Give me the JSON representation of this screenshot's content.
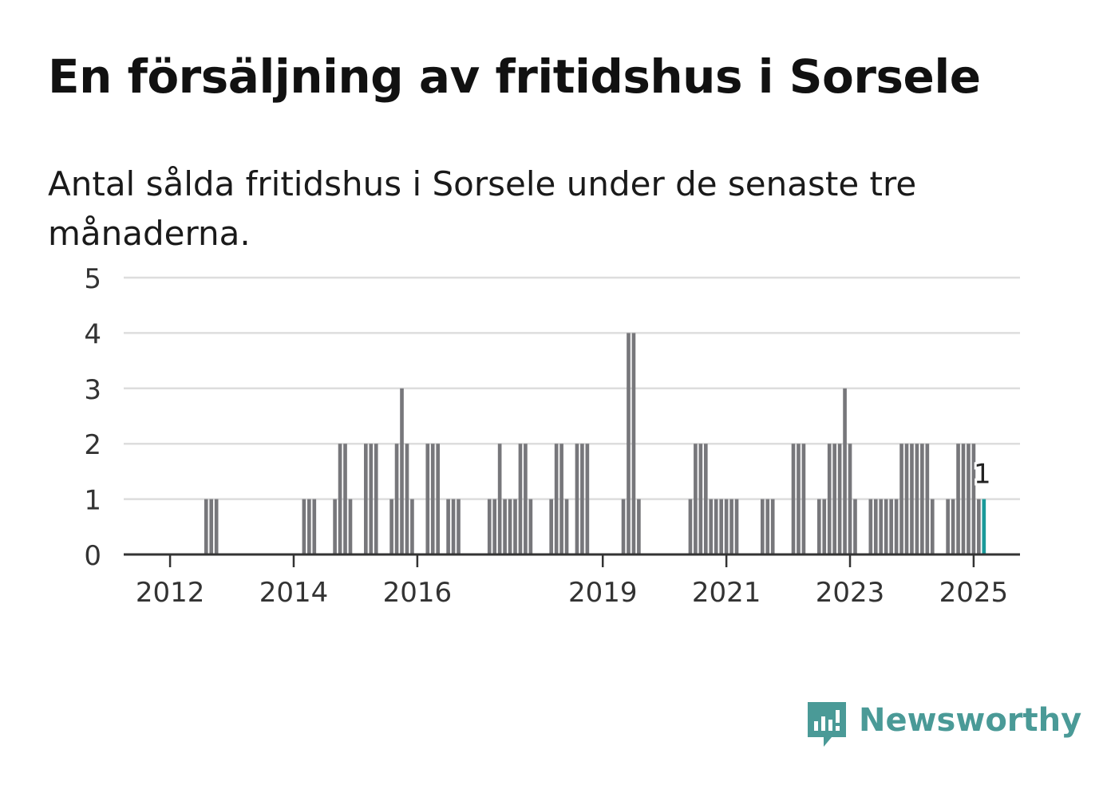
{
  "title": "En försäljning av fritidshus i Sorsele",
  "subtitle": "Antal sålda fritidshus i Sorsele under de senaste tre månaderna.",
  "logo": {
    "text": "Newsworthy",
    "icon": "newsworthy-logo-icon",
    "color": "#4a9a97"
  },
  "colors": {
    "bar": "#77777b",
    "highlight": "#1a9a9a",
    "grid": "#dddddd",
    "axis": "#333333"
  },
  "chart_data": {
    "type": "bar",
    "x_unit": "month",
    "ylim": [
      0,
      5
    ],
    "y_ticks": [
      "0",
      "1",
      "2",
      "3",
      "4",
      "5"
    ],
    "x_ticks": [
      {
        "label": "2012",
        "date": "2012-01"
      },
      {
        "label": "2014",
        "date": "2014-01"
      },
      {
        "label": "2016",
        "date": "2016-01"
      },
      {
        "label": "2019",
        "date": "2019-01"
      },
      {
        "label": "2021",
        "date": "2021-01"
      },
      {
        "label": "2023",
        "date": "2023-01"
      },
      {
        "label": "2025",
        "date": "2025-01"
      }
    ],
    "grid": true,
    "last_value_label": "1",
    "series": [
      {
        "values": [
          {
            "date": "2012-08",
            "value": 1
          },
          {
            "date": "2012-09",
            "value": 1
          },
          {
            "date": "2012-10",
            "value": 1
          },
          {
            "date": "2014-03",
            "value": 1
          },
          {
            "date": "2014-04",
            "value": 1
          },
          {
            "date": "2014-05",
            "value": 1
          },
          {
            "date": "2014-09",
            "value": 1
          },
          {
            "date": "2014-10",
            "value": 2
          },
          {
            "date": "2014-11",
            "value": 2
          },
          {
            "date": "2014-12",
            "value": 1
          },
          {
            "date": "2015-03",
            "value": 2
          },
          {
            "date": "2015-04",
            "value": 2
          },
          {
            "date": "2015-05",
            "value": 2
          },
          {
            "date": "2015-08",
            "value": 1
          },
          {
            "date": "2015-09",
            "value": 2
          },
          {
            "date": "2015-10",
            "value": 3
          },
          {
            "date": "2015-11",
            "value": 2
          },
          {
            "date": "2015-12",
            "value": 1
          },
          {
            "date": "2016-03",
            "value": 2
          },
          {
            "date": "2016-04",
            "value": 2
          },
          {
            "date": "2016-05",
            "value": 2
          },
          {
            "date": "2016-07",
            "value": 1
          },
          {
            "date": "2016-08",
            "value": 1
          },
          {
            "date": "2016-09",
            "value": 1
          },
          {
            "date": "2017-03",
            "value": 1
          },
          {
            "date": "2017-04",
            "value": 1
          },
          {
            "date": "2017-05",
            "value": 2
          },
          {
            "date": "2017-06",
            "value": 1
          },
          {
            "date": "2017-07",
            "value": 1
          },
          {
            "date": "2017-08",
            "value": 1
          },
          {
            "date": "2017-09",
            "value": 2
          },
          {
            "date": "2017-10",
            "value": 2
          },
          {
            "date": "2017-11",
            "value": 1
          },
          {
            "date": "2018-03",
            "value": 1
          },
          {
            "date": "2018-04",
            "value": 2
          },
          {
            "date": "2018-05",
            "value": 2
          },
          {
            "date": "2018-06",
            "value": 1
          },
          {
            "date": "2018-08",
            "value": 2
          },
          {
            "date": "2018-09",
            "value": 2
          },
          {
            "date": "2018-10",
            "value": 2
          },
          {
            "date": "2019-05",
            "value": 1
          },
          {
            "date": "2019-06",
            "value": 4
          },
          {
            "date": "2019-07",
            "value": 4
          },
          {
            "date": "2019-08",
            "value": 1
          },
          {
            "date": "2020-06",
            "value": 1
          },
          {
            "date": "2020-07",
            "value": 2
          },
          {
            "date": "2020-08",
            "value": 2
          },
          {
            "date": "2020-09",
            "value": 2
          },
          {
            "date": "2020-10",
            "value": 1
          },
          {
            "date": "2020-11",
            "value": 1
          },
          {
            "date": "2020-12",
            "value": 1
          },
          {
            "date": "2021-01",
            "value": 1
          },
          {
            "date": "2021-02",
            "value": 1
          },
          {
            "date": "2021-03",
            "value": 1
          },
          {
            "date": "2021-08",
            "value": 1
          },
          {
            "date": "2021-09",
            "value": 1
          },
          {
            "date": "2021-10",
            "value": 1
          },
          {
            "date": "2022-02",
            "value": 2
          },
          {
            "date": "2022-03",
            "value": 2
          },
          {
            "date": "2022-04",
            "value": 2
          },
          {
            "date": "2022-07",
            "value": 1
          },
          {
            "date": "2022-08",
            "value": 1
          },
          {
            "date": "2022-09",
            "value": 2
          },
          {
            "date": "2022-10",
            "value": 2
          },
          {
            "date": "2022-11",
            "value": 2
          },
          {
            "date": "2022-12",
            "value": 3
          },
          {
            "date": "2023-01",
            "value": 2
          },
          {
            "date": "2023-02",
            "value": 1
          },
          {
            "date": "2023-05",
            "value": 1
          },
          {
            "date": "2023-06",
            "value": 1
          },
          {
            "date": "2023-07",
            "value": 1
          },
          {
            "date": "2023-08",
            "value": 1
          },
          {
            "date": "2023-09",
            "value": 1
          },
          {
            "date": "2023-10",
            "value": 1
          },
          {
            "date": "2023-11",
            "value": 2
          },
          {
            "date": "2023-12",
            "value": 2
          },
          {
            "date": "2024-01",
            "value": 2
          },
          {
            "date": "2024-02",
            "value": 2
          },
          {
            "date": "2024-03",
            "value": 2
          },
          {
            "date": "2024-04",
            "value": 2
          },
          {
            "date": "2024-05",
            "value": 1
          },
          {
            "date": "2024-08",
            "value": 1
          },
          {
            "date": "2024-09",
            "value": 1
          },
          {
            "date": "2024-10",
            "value": 2
          },
          {
            "date": "2024-11",
            "value": 2
          },
          {
            "date": "2024-12",
            "value": 2
          },
          {
            "date": "2025-01",
            "value": 2
          },
          {
            "date": "2025-02",
            "value": 1
          },
          {
            "date": "2025-03",
            "value": 1,
            "highlight": true
          }
        ]
      }
    ]
  }
}
